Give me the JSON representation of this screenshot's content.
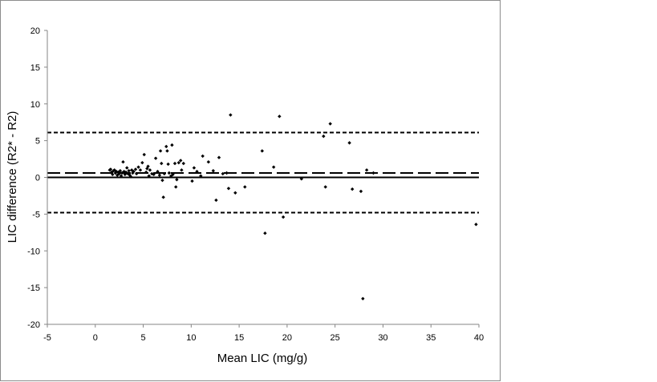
{
  "chart_data": {
    "type": "scatter",
    "title": "",
    "xlabel": "Mean LIC (mg/g)",
    "ylabel": "LIC difference (R2* - R2)",
    "xlim": [
      -5,
      40
    ],
    "ylim": [
      -20,
      20
    ],
    "xticks": [
      -5,
      0,
      5,
      10,
      15,
      20,
      25,
      30,
      35,
      40
    ],
    "yticks": [
      -20,
      -15,
      -10,
      -5,
      0,
      5,
      10,
      15,
      20
    ],
    "grid": false,
    "legend": "none",
    "reference_lines": [
      {
        "y": 0,
        "style": "solid"
      },
      {
        "y": 0.6,
        "style": "long-dash"
      },
      {
        "y": 6.1,
        "style": "short-dash"
      },
      {
        "y": -4.8,
        "style": "short-dash"
      }
    ],
    "marker_color": "#000000",
    "points": [
      [
        1.5,
        1.0
      ],
      [
        1.6,
        1.1
      ],
      [
        1.7,
        0.7
      ],
      [
        1.8,
        0.4
      ],
      [
        1.9,
        0.9
      ],
      [
        2.0,
        1.0
      ],
      [
        2.1,
        0.6
      ],
      [
        2.2,
        0.8
      ],
      [
        2.3,
        0.3
      ],
      [
        2.4,
        0.7
      ],
      [
        2.5,
        0.5
      ],
      [
        2.6,
        0.9
      ],
      [
        2.7,
        0.2
      ],
      [
        2.8,
        0.6
      ],
      [
        2.9,
        2.1
      ],
      [
        3.0,
        0.8
      ],
      [
        3.1,
        0.4
      ],
      [
        3.2,
        0.7
      ],
      [
        3.3,
        1.3
      ],
      [
        3.4,
        0.5
      ],
      [
        3.5,
        0.9
      ],
      [
        3.6,
        0.3
      ],
      [
        3.7,
        0.1
      ],
      [
        3.8,
        1.0
      ],
      [
        3.9,
        0.6
      ],
      [
        4.0,
        0.8
      ],
      [
        4.2,
        1.1
      ],
      [
        4.3,
        0.5
      ],
      [
        4.5,
        1.4
      ],
      [
        4.7,
        1.0
      ],
      [
        4.9,
        2.0
      ],
      [
        5.1,
        3.1
      ],
      [
        5.3,
        0.7
      ],
      [
        5.4,
        1.2
      ],
      [
        5.5,
        1.5
      ],
      [
        5.6,
        0.2
      ],
      [
        5.7,
        1.0
      ],
      [
        5.9,
        0.5
      ],
      [
        6.1,
        0.4
      ],
      [
        6.3,
        2.6
      ],
      [
        6.5,
        0.8
      ],
      [
        6.7,
        0.3
      ],
      [
        6.8,
        3.6
      ],
      [
        6.9,
        1.9
      ],
      [
        7.0,
        -0.4
      ],
      [
        7.1,
        -2.7
      ],
      [
        7.2,
        0.5
      ],
      [
        7.4,
        4.2
      ],
      [
        7.5,
        3.6
      ],
      [
        7.6,
        1.8
      ],
      [
        7.7,
        0.6
      ],
      [
        7.9,
        0.2
      ],
      [
        8.0,
        4.4
      ],
      [
        8.1,
        0.4
      ],
      [
        8.3,
        1.9
      ],
      [
        8.4,
        -1.3
      ],
      [
        8.5,
        -0.3
      ],
      [
        8.7,
        2.0
      ],
      [
        8.9,
        2.3
      ],
      [
        9.0,
        1.0
      ],
      [
        9.2,
        1.9
      ],
      [
        10.1,
        -0.5
      ],
      [
        10.3,
        1.3
      ],
      [
        10.6,
        0.8
      ],
      [
        11.0,
        0.2
      ],
      [
        11.2,
        2.9
      ],
      [
        11.8,
        2.1
      ],
      [
        12.3,
        0.9
      ],
      [
        12.6,
        -3.1
      ],
      [
        12.9,
        2.7
      ],
      [
        13.3,
        0.5
      ],
      [
        13.7,
        0.6
      ],
      [
        13.9,
        -1.5
      ],
      [
        14.1,
        8.5
      ],
      [
        14.6,
        -2.1
      ],
      [
        15.6,
        -1.3
      ],
      [
        17.4,
        3.6
      ],
      [
        17.7,
        -7.6
      ],
      [
        18.6,
        1.4
      ],
      [
        19.2,
        8.3
      ],
      [
        19.6,
        -5.4
      ],
      [
        21.5,
        -0.2
      ],
      [
        23.8,
        5.6
      ],
      [
        24.0,
        -1.3
      ],
      [
        24.5,
        7.3
      ],
      [
        26.5,
        4.7
      ],
      [
        26.8,
        -1.6
      ],
      [
        27.7,
        -1.9
      ],
      [
        27.9,
        -16.5
      ],
      [
        28.3,
        1.0
      ],
      [
        29.0,
        0.6
      ],
      [
        39.7,
        -6.4
      ]
    ]
  }
}
